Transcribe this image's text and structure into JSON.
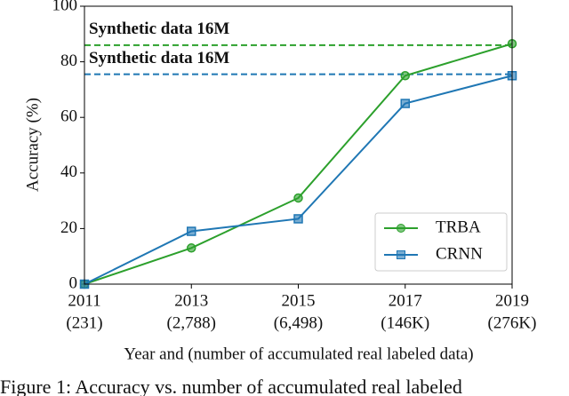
{
  "chart_data": {
    "type": "line",
    "categories": [
      "2011",
      "2013",
      "2015",
      "2017",
      "2019"
    ],
    "category_counts": [
      "(231)",
      "(2,788)",
      "(6,498)",
      "(146K)",
      "(276K)"
    ],
    "series": [
      {
        "name": "TRBA",
        "color": "#2ca02c",
        "marker": "circle",
        "values": [
          0,
          13,
          31,
          75,
          86.5
        ]
      },
      {
        "name": "CRNN",
        "color": "#1f77b4",
        "marker": "square",
        "values": [
          0,
          19,
          23.5,
          65,
          75
        ]
      }
    ],
    "reference_lines": [
      {
        "label": "Synthetic data 16M",
        "value": 86,
        "color": "#2ca02c"
      },
      {
        "label": "Synthetic data 16M",
        "value": 75.5,
        "color": "#1f77b4"
      }
    ],
    "ylim": [
      0,
      100
    ],
    "yticks": [
      0,
      20,
      40,
      60,
      80,
      100
    ],
    "y_label": "Accuracy (%)",
    "x_label": "Year and (number of accumulated real labeled data)",
    "legend": "lower right",
    "caption": "Figure 1: Accuracy vs. number of accumulated real labeled"
  }
}
